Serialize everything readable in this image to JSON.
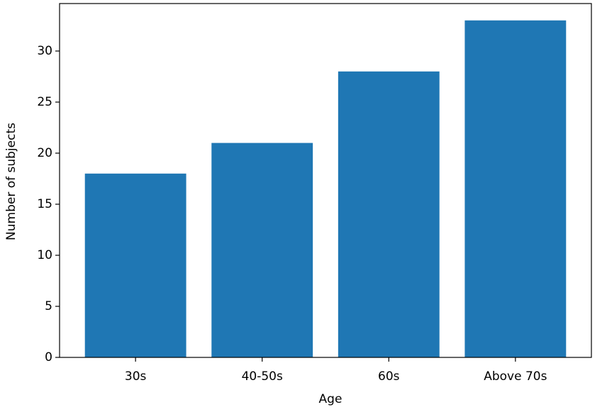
{
  "chart_data": {
    "type": "bar",
    "x_label": "Age",
    "y_label": "Number of subjects",
    "categories": [
      "30s",
      "40-50s",
      "60s",
      "Above 70s"
    ],
    "values": [
      18,
      21,
      28,
      33
    ],
    "color": "#1f77b4",
    "ylim": [
      0,
      34.65
    ],
    "yticks": [
      0,
      5,
      10,
      15,
      20,
      25,
      30
    ],
    "grid": false
  }
}
